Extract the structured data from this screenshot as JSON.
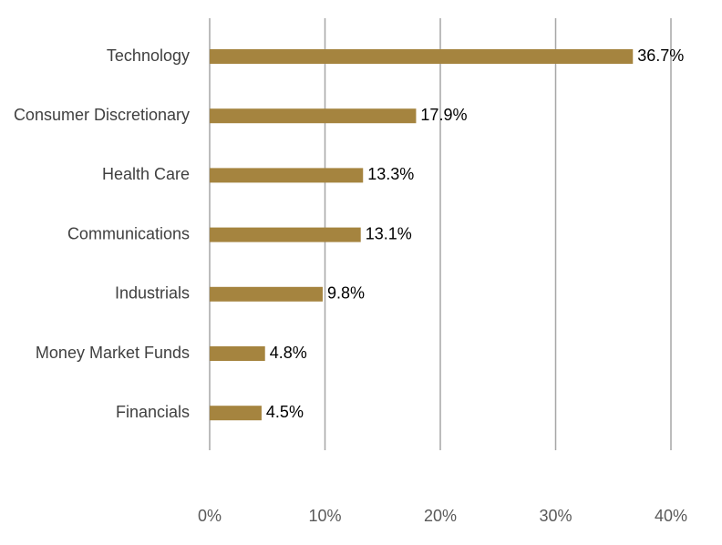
{
  "chart_data": {
    "type": "bar",
    "orientation": "horizontal",
    "categories": [
      "Technology",
      "Consumer Discretionary",
      "Health Care",
      "Communications",
      "Industrials",
      "Money Market Funds",
      "Financials"
    ],
    "values": [
      36.7,
      17.9,
      13.3,
      13.1,
      9.8,
      4.8,
      4.5
    ],
    "data_labels": [
      "36.7%",
      "17.9%",
      "13.3%",
      "13.1%",
      "9.8%",
      "4.8%",
      "4.5%"
    ],
    "xticks": [
      0,
      10,
      20,
      30,
      40
    ],
    "xtick_labels": [
      "0%",
      "10%",
      "20%",
      "30%",
      "40%"
    ],
    "xlim": [
      0,
      40
    ],
    "grid": "vertical",
    "legend": "none",
    "bar_color": "#a5843f",
    "grid_color": "#a6a6a6"
  }
}
